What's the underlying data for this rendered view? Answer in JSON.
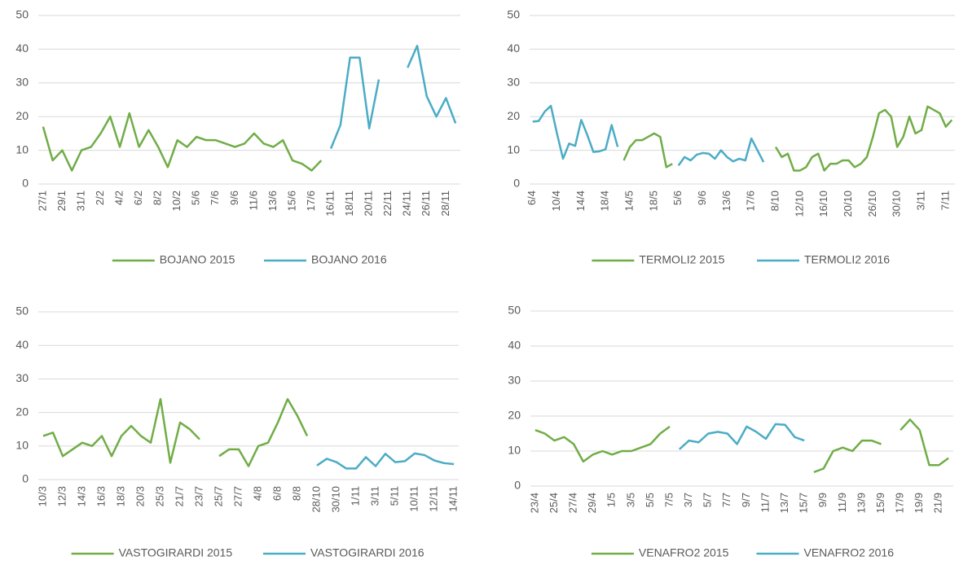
{
  "chart_data": [
    {
      "type": "line",
      "categories": [
        "27/1",
        null,
        "29/1",
        null,
        "31/1",
        null,
        "2/2",
        null,
        "4/2",
        null,
        "6/2",
        null,
        "8/2",
        null,
        "10/2",
        null,
        "5/6",
        null,
        "7/6",
        null,
        "9/6",
        null,
        "11/6",
        null,
        "13/6",
        null,
        "15/6",
        null,
        "17/6",
        null,
        "16/11",
        null,
        "18/11",
        null,
        "20/11",
        null,
        "22/11",
        null,
        "24/11",
        null,
        "26/11",
        null,
        "28/11",
        null
      ],
      "series": [
        {
          "name": "BOJANO 2015",
          "color": "#70ad47",
          "values": [
            17,
            7,
            10,
            4,
            10,
            11,
            15,
            20,
            11,
            21,
            11,
            16,
            11,
            5,
            13,
            11,
            14,
            13,
            13,
            12,
            11,
            12,
            15,
            12,
            11,
            13,
            7,
            6,
            4,
            7,
            null,
            null,
            null,
            null,
            null,
            null,
            null,
            null,
            null,
            null,
            null,
            null,
            null,
            null
          ]
        },
        {
          "name": "BOJANO 2016",
          "color": "#4bacc6",
          "values": [
            null,
            null,
            null,
            null,
            null,
            null,
            null,
            null,
            null,
            null,
            null,
            null,
            null,
            null,
            null,
            null,
            null,
            null,
            null,
            null,
            null,
            null,
            null,
            null,
            null,
            null,
            null,
            null,
            null,
            null,
            10.5,
            17.5,
            37.5,
            37.5,
            16.5,
            31,
            null,
            null,
            34.5,
            41,
            26,
            20,
            25.5,
            18
          ]
        }
      ],
      "ylim": [
        0,
        50
      ],
      "yticks": [
        0,
        10,
        20,
        30,
        40,
        50
      ],
      "grid": true,
      "legend": "bottom"
    },
    {
      "type": "line",
      "categories": [
        "6/4",
        null,
        null,
        null,
        "10/4",
        null,
        null,
        null,
        "14/4",
        null,
        null,
        null,
        "18/4",
        null,
        null,
        null,
        "14/5",
        null,
        null,
        null,
        "18/5",
        null,
        null,
        null,
        "5/6",
        null,
        null,
        null,
        "9/6",
        null,
        null,
        null,
        "13/6",
        null,
        null,
        null,
        "17/6",
        null,
        null,
        null,
        "8/10",
        null,
        null,
        null,
        "12/10",
        null,
        null,
        null,
        "16/10",
        null,
        null,
        null,
        "20/10",
        null,
        null,
        null,
        "26/10",
        null,
        null,
        null,
        "30/10",
        null,
        null,
        null,
        "3/11",
        null,
        null,
        null,
        "7/11",
        null
      ],
      "series": [
        {
          "name": "TERMOLI2 2015",
          "color": "#70ad47",
          "values": [
            null,
            null,
            null,
            null,
            null,
            null,
            null,
            null,
            null,
            null,
            null,
            null,
            null,
            null,
            null,
            7,
            11,
            13,
            13,
            14,
            15,
            14,
            5,
            6,
            null,
            null,
            null,
            null,
            null,
            null,
            null,
            null,
            null,
            null,
            null,
            null,
            null,
            null,
            null,
            null,
            11,
            8,
            9,
            4,
            4,
            5,
            8,
            9,
            4,
            6,
            6,
            7,
            7,
            5,
            6,
            8,
            14,
            21,
            22,
            20,
            11,
            14,
            20,
            15,
            16,
            23,
            22,
            21,
            17,
            19
          ]
        },
        {
          "name": "TERMOLI2 2016",
          "color": "#4bacc6",
          "values": [
            18.5,
            18.7,
            21.5,
            23.2,
            15,
            7.5,
            12,
            11.3,
            19,
            14.5,
            9.5,
            9.7,
            10.3,
            17.5,
            11,
            null,
            null,
            null,
            null,
            null,
            null,
            null,
            null,
            null,
            5.5,
            8,
            7,
            8.7,
            9.2,
            9,
            7.5,
            10,
            8,
            6.7,
            7.5,
            7,
            13.5,
            10,
            6.5,
            null,
            null,
            null,
            null,
            null,
            null,
            null,
            null,
            null,
            null,
            null,
            null,
            null,
            null,
            null,
            null,
            null,
            null,
            null,
            null,
            null,
            null,
            null,
            null,
            null,
            null,
            null,
            null,
            null,
            null,
            null
          ]
        }
      ],
      "ylim": [
        0,
        50
      ],
      "yticks": [
        0,
        10,
        20,
        30,
        40,
        50
      ],
      "grid": true,
      "legend": "bottom"
    },
    {
      "type": "line",
      "categories": [
        "10/3",
        null,
        "12/3",
        null,
        "14/3",
        null,
        "16/3",
        null,
        "18/3",
        null,
        "20/3",
        null,
        "25/3",
        null,
        "21/7",
        null,
        "23/7",
        null,
        "25/7",
        null,
        "27/7",
        null,
        "4/8",
        null,
        "6/8",
        null,
        "8/8",
        null,
        "28/10",
        null,
        "30/10",
        null,
        "1/11",
        null,
        "3/11",
        null,
        "5/11",
        null,
        "10/11",
        null,
        "12/11",
        null,
        "14/11"
      ],
      "series": [
        {
          "name": "VASTOGIRARDI 2015",
          "color": "#70ad47",
          "values": [
            13,
            14,
            7,
            9,
            11,
            10,
            13,
            7,
            13,
            16,
            13,
            11,
            24,
            5,
            17,
            15,
            12,
            null,
            7,
            9,
            9,
            4,
            10,
            11,
            17,
            24,
            19,
            13,
            null,
            null,
            null,
            null,
            null,
            null,
            null,
            null,
            null,
            null,
            null,
            null,
            null,
            null,
            null
          ]
        },
        {
          "name": "VASTOGIRARDI 2016",
          "color": "#4bacc6",
          "values": [
            null,
            null,
            null,
            null,
            null,
            null,
            null,
            null,
            null,
            null,
            null,
            null,
            null,
            null,
            null,
            null,
            null,
            null,
            null,
            null,
            null,
            null,
            null,
            null,
            null,
            null,
            null,
            null,
            4.2,
            6.2,
            5.2,
            3.3,
            3.3,
            6.7,
            4,
            7.7,
            5.2,
            5.5,
            7.8,
            7.3,
            5.7,
            4.9,
            4.6
          ]
        }
      ],
      "ylim": [
        0,
        50
      ],
      "yticks": [
        0,
        10,
        20,
        30,
        40,
        50
      ],
      "grid": true,
      "legend": "bottom"
    },
    {
      "type": "line",
      "categories": [
        "23/4",
        null,
        "25/4",
        null,
        "27/4",
        null,
        "29/4",
        null,
        "1/5",
        null,
        "3/5",
        null,
        "5/5",
        null,
        "7/5",
        null,
        "3/7",
        null,
        "5/7",
        null,
        "7/7",
        null,
        "9/7",
        null,
        "11/7",
        null,
        "13/7",
        null,
        "15/7",
        null,
        "9/9",
        null,
        "11/9",
        null,
        "13/9",
        null,
        "15/9",
        null,
        "17/9",
        null,
        "19/9",
        null,
        "21/9",
        null
      ],
      "series": [
        {
          "name": "VENAFRO2 2015",
          "color": "#70ad47",
          "values": [
            16,
            15,
            13,
            14,
            12,
            7,
            9,
            10,
            9,
            10,
            10,
            11,
            12,
            15,
            17,
            null,
            null,
            null,
            null,
            null,
            null,
            null,
            null,
            null,
            null,
            null,
            null,
            null,
            null,
            4,
            5,
            10,
            11,
            10,
            13,
            13,
            12,
            null,
            16,
            19,
            16,
            6,
            6,
            8
          ]
        },
        {
          "name": "VENAFRO2 2016",
          "color": "#4bacc6",
          "values": [
            null,
            null,
            null,
            null,
            null,
            null,
            null,
            null,
            null,
            null,
            null,
            null,
            null,
            null,
            null,
            10.5,
            13,
            12.5,
            15,
            15.5,
            15,
            12,
            17,
            15.5,
            13.5,
            17.7,
            17.5,
            14,
            13,
            null,
            null,
            null,
            null,
            null,
            null,
            null,
            null,
            null,
            null,
            null,
            null,
            null,
            null,
            null
          ]
        }
      ],
      "ylim": [
        0,
        50
      ],
      "yticks": [
        0,
        10,
        20,
        30,
        40,
        50
      ],
      "grid": true,
      "legend": "bottom"
    }
  ]
}
